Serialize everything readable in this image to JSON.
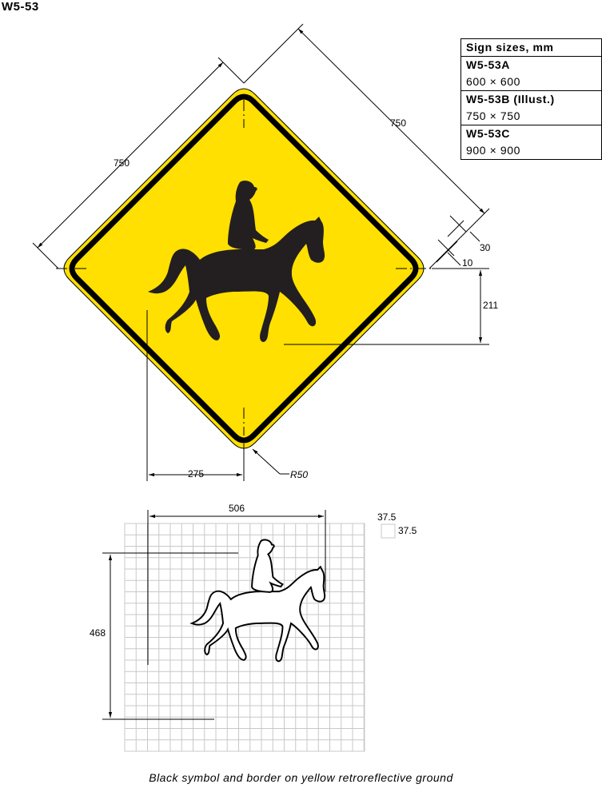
{
  "sign_code": "W5-53",
  "sizes_table": {
    "header": "Sign sizes, mm",
    "rows": [
      {
        "name": "W5-53A",
        "size": "600 × 600"
      },
      {
        "name": "W5-53B (Illust.)",
        "size": "750 × 750"
      },
      {
        "name": "W5-53C",
        "size": "900 × 900"
      }
    ]
  },
  "dimensions": {
    "left_side": "750",
    "right_side": "750",
    "border_outer": "30",
    "border_inner": "10",
    "symbol_base": "211",
    "symbol_left": "275",
    "corner_radius": "R50",
    "grid_width": "506",
    "grid_height": "468",
    "grid_cell_w": "37.5",
    "grid_cell_h": "37.5"
  },
  "caption": "Black symbol and border on yellow retroreflective ground",
  "colors": {
    "sign_yellow": "#FFE000",
    "symbol_black": "#231F20",
    "grid": "#c8c8c8"
  },
  "icons": {
    "sign_symbol": "horse-rider-icon",
    "outline_symbol": "horse-rider-outline-icon"
  }
}
